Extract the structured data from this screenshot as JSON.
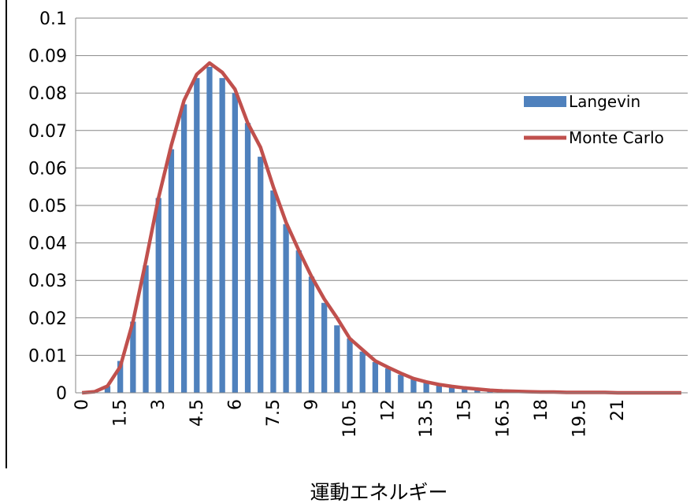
{
  "chart_data": {
    "type": "bar",
    "title": "",
    "xlabel": "運動エネルギー",
    "ylabel": "",
    "ylim": [
      0,
      0.1
    ],
    "yticks": [
      "0",
      "0.01",
      "0.02",
      "0.03",
      "0.04",
      "0.05",
      "0.06",
      "0.07",
      "0.08",
      "0.09",
      "0.1"
    ],
    "xtick_labels": [
      "0",
      "1.5",
      "3",
      "4.5",
      "6",
      "7.5",
      "9",
      "10.5",
      "12",
      "13.5",
      "15",
      "16.5",
      "18",
      "19.5",
      "21"
    ],
    "grid": "horizontal",
    "legend_position": "right",
    "x": [
      0,
      0.5,
      1,
      1.5,
      2,
      2.5,
      3,
      3.5,
      4,
      4.5,
      5,
      5.5,
      6,
      6.5,
      7,
      7.5,
      8,
      8.5,
      9,
      9.5,
      10,
      10.5,
      11,
      11.5,
      12,
      12.5,
      13,
      13.5,
      14,
      14.5,
      15,
      15.5,
      16,
      16.5,
      17,
      17.5,
      18,
      18.5,
      19,
      19.5,
      20,
      20.5,
      21,
      21.5,
      22,
      22.5,
      23,
      23.5
    ],
    "series": [
      {
        "name": "Langevin",
        "type": "bar",
        "color": "#4f81bd",
        "values": [
          0,
          0,
          0.0018,
          0.0085,
          0.019,
          0.034,
          0.052,
          0.065,
          0.077,
          0.084,
          0.087,
          0.084,
          0.08,
          0.072,
          0.063,
          0.054,
          0.045,
          0.038,
          0.031,
          0.024,
          0.018,
          0.0145,
          0.011,
          0.0082,
          0.0065,
          0.0048,
          0.0036,
          0.0028,
          0.002,
          0.0015,
          0.001,
          0.0007,
          0.0005,
          0.0003,
          0.0002,
          0.0002,
          0.0001,
          0.0001,
          0.0001,
          0.0001,
          0,
          0,
          0,
          0,
          0,
          0,
          0,
          0
        ]
      },
      {
        "name": "Monte Carlo",
        "type": "line",
        "color": "#c0504d",
        "values": [
          0,
          0.0003,
          0.0018,
          0.007,
          0.019,
          0.035,
          0.052,
          0.066,
          0.078,
          0.085,
          0.088,
          0.0855,
          0.081,
          0.072,
          0.0655,
          0.055,
          0.0455,
          0.038,
          0.031,
          0.025,
          0.02,
          0.0145,
          0.0115,
          0.0085,
          0.0068,
          0.0052,
          0.0038,
          0.0029,
          0.0022,
          0.0017,
          0.0013,
          0.001,
          0.0007,
          0.0005,
          0.0004,
          0.0003,
          0.0002,
          0.0002,
          0.0001,
          0.0001,
          0.0001,
          0.0001,
          0,
          0,
          0,
          0,
          0,
          0
        ]
      }
    ]
  }
}
